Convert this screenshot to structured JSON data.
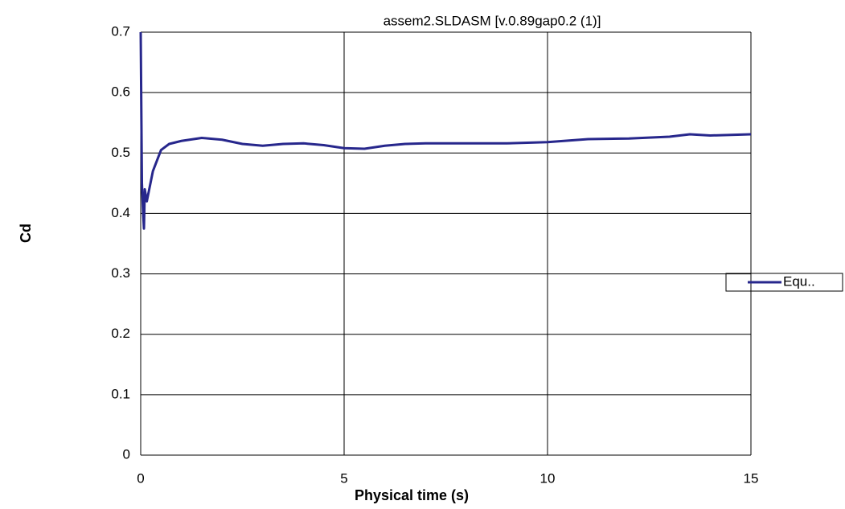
{
  "chart_data": {
    "type": "line",
    "title": "assem2.SLDASM [v.0.89gap0.2 (1)]",
    "x_label": "Physical time (s)",
    "y_label": "Cd",
    "xlim": [
      0,
      15
    ],
    "xticks": [
      0,
      5,
      10,
      15
    ],
    "ylim": [
      0,
      0.7
    ],
    "yticks": [
      0,
      0.1,
      0.2,
      0.3,
      0.4,
      0.5,
      0.6,
      0.7
    ],
    "grid": true,
    "legend": "right",
    "series": [
      {
        "name": "Equ..",
        "color": "#27278c",
        "x": [
          0,
          0.03,
          0.06,
          0.08,
          0.1,
          0.15,
          0.3,
          0.5,
          0.7,
          1.0,
          1.5,
          2.0,
          2.5,
          3.0,
          3.5,
          4.0,
          4.5,
          5.0,
          5.5,
          6.0,
          6.5,
          7.0,
          8.0,
          9.0,
          10.0,
          11.0,
          12.0,
          13.0,
          13.5,
          14.0,
          15.0
        ],
        "values": [
          0.7,
          0.45,
          0.4,
          0.375,
          0.44,
          0.42,
          0.47,
          0.505,
          0.515,
          0.52,
          0.525,
          0.522,
          0.515,
          0.512,
          0.515,
          0.516,
          0.513,
          0.508,
          0.507,
          0.512,
          0.515,
          0.516,
          0.516,
          0.516,
          0.518,
          0.523,
          0.524,
          0.527,
          0.531,
          0.529,
          0.531
        ]
      }
    ]
  }
}
